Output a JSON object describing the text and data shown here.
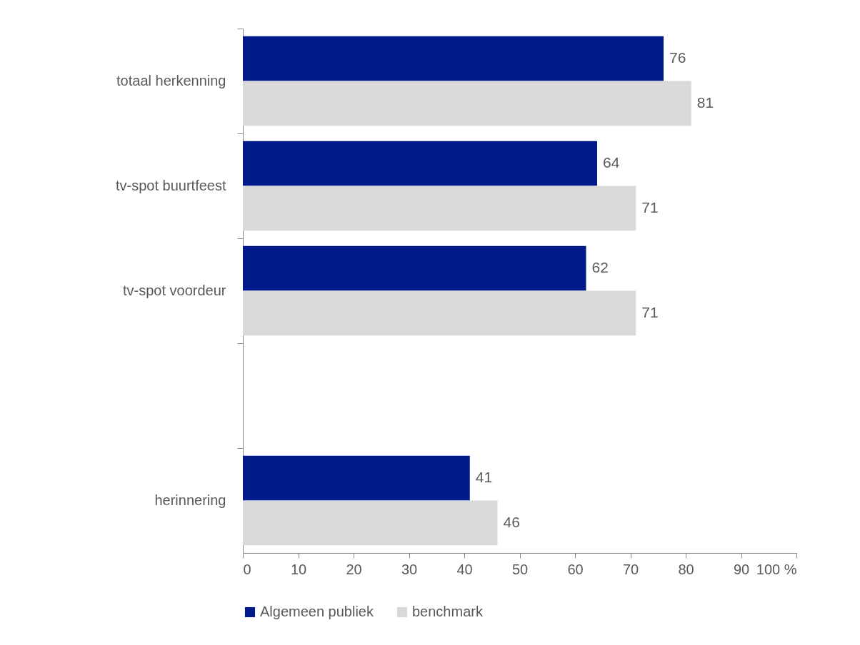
{
  "chart_data": {
    "type": "bar",
    "orientation": "horizontal",
    "categories": [
      "totaal herkenning",
      "tv-spot buurtfeest",
      "tv-spot voordeur",
      null,
      "herinnering"
    ],
    "series": [
      {
        "name": "Algemeen publiek",
        "color": "#001a8c",
        "values": [
          76,
          64,
          62,
          null,
          41
        ]
      },
      {
        "name": "benchmark",
        "color": "#d9d9d9",
        "values": [
          81,
          71,
          71,
          null,
          46
        ]
      }
    ],
    "xlim": [
      0,
      100
    ],
    "xticks": [
      0,
      10,
      20,
      30,
      40,
      50,
      60,
      70,
      80,
      90,
      {
        "value": 100,
        "label": "100 %"
      }
    ],
    "data_labels": true,
    "legend": "bottom",
    "grid": false
  }
}
